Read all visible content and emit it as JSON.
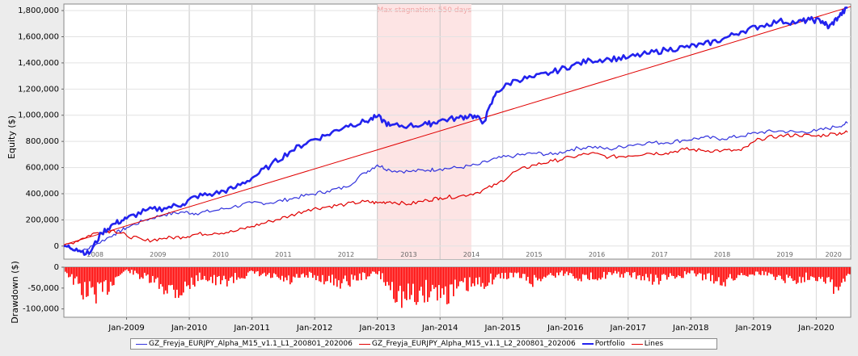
{
  "chart_data": [
    {
      "type": "line",
      "panel": "equity",
      "ylabel": "Equity ($)",
      "ylim": [
        -100000,
        1850000
      ],
      "yticks": [
        0,
        200000,
        400000,
        600000,
        800000,
        1000000,
        1200000,
        1400000,
        1600000,
        1800000
      ],
      "ytick_labels": [
        "0",
        "200,000",
        "400,000",
        "600,000",
        "800,000",
        "1,000,000",
        "1,200,000",
        "1,400,000",
        "1,600,000",
        "1,800,000"
      ],
      "xlim": [
        2008.0,
        2020.55
      ],
      "year_labels": [
        "2008",
        "2009",
        "2010",
        "2011",
        "2012",
        "2013",
        "2014",
        "2015",
        "2016",
        "2017",
        "2018",
        "2019",
        "2020"
      ],
      "highlight": {
        "label": "Max stagnation: 550 days",
        "x": [
          2013.0,
          2014.5
        ],
        "color": "#fde4e4"
      },
      "series": [
        {
          "name": "GZ_Freyja_EURJPY_Alpha_M15_v1.1_L1_200801_202006",
          "color": "#3333dd",
          "width": 1.2,
          "x": [
            2008.0,
            2008.3,
            2008.5,
            2008.8,
            2009.0,
            2009.3,
            2009.6,
            2009.9,
            2010.1,
            2010.4,
            2010.7,
            2011.0,
            2011.3,
            2011.6,
            2011.9,
            2012.2,
            2012.5,
            2012.8,
            2013.0,
            2013.2,
            2013.5,
            2013.8,
            2014.0,
            2014.3,
            2014.6,
            2014.9,
            2015.2,
            2015.5,
            2015.8,
            2016.1,
            2016.4,
            2016.7,
            2017.0,
            2017.3,
            2017.6,
            2017.9,
            2018.2,
            2018.5,
            2018.8,
            2019.1,
            2019.4,
            2019.7,
            2020.0,
            2020.3,
            2020.5
          ],
          "y": [
            0,
            -40000,
            10000,
            90000,
            140000,
            200000,
            240000,
            260000,
            250000,
            270000,
            300000,
            330000,
            330000,
            360000,
            390000,
            420000,
            450000,
            560000,
            620000,
            580000,
            570000,
            580000,
            590000,
            600000,
            620000,
            670000,
            690000,
            710000,
            700000,
            740000,
            760000,
            740000,
            770000,
            790000,
            790000,
            810000,
            830000,
            820000,
            840000,
            870000,
            880000,
            870000,
            880000,
            910000,
            940000
          ]
        },
        {
          "name": "GZ_Freyja_EURJPY_Alpha_M15_v1.1_L2_200801_202006",
          "color": "#e00000",
          "width": 1.2,
          "x": [
            2008.0,
            2008.3,
            2008.5,
            2008.8,
            2009.0,
            2009.3,
            2009.6,
            2009.9,
            2010.1,
            2010.4,
            2010.7,
            2011.0,
            2011.3,
            2011.6,
            2011.9,
            2012.2,
            2012.5,
            2012.8,
            2013.0,
            2013.2,
            2013.5,
            2013.8,
            2014.0,
            2014.3,
            2014.6,
            2014.9,
            2015.2,
            2015.5,
            2015.8,
            2016.1,
            2016.4,
            2016.7,
            2017.0,
            2017.3,
            2017.6,
            2017.9,
            2018.2,
            2018.5,
            2018.8,
            2019.1,
            2019.4,
            2019.7,
            2020.0,
            2020.3,
            2020.5
          ],
          "y": [
            0,
            60000,
            100000,
            120000,
            80000,
            40000,
            60000,
            70000,
            90000,
            100000,
            110000,
            150000,
            190000,
            230000,
            280000,
            300000,
            320000,
            340000,
            330000,
            340000,
            320000,
            350000,
            370000,
            380000,
            410000,
            470000,
            570000,
            620000,
            650000,
            680000,
            710000,
            680000,
            690000,
            710000,
            710000,
            740000,
            730000,
            730000,
            730000,
            820000,
            840000,
            850000,
            840000,
            860000,
            870000
          ]
        },
        {
          "name": "Portfolio",
          "color": "#2222ee",
          "width": 2.6,
          "x": [
            2008.0,
            2008.2,
            2008.4,
            2008.6,
            2008.8,
            2009.0,
            2009.3,
            2009.6,
            2009.9,
            2010.1,
            2010.4,
            2010.7,
            2011.0,
            2011.3,
            2011.6,
            2011.9,
            2012.2,
            2012.5,
            2012.8,
            2013.0,
            2013.2,
            2013.5,
            2013.8,
            2014.0,
            2014.3,
            2014.5,
            2014.7,
            2014.9,
            2015.2,
            2015.5,
            2015.8,
            2016.1,
            2016.4,
            2016.7,
            2017.0,
            2017.3,
            2017.6,
            2017.9,
            2018.2,
            2018.5,
            2018.8,
            2019.1,
            2019.4,
            2019.7,
            2019.9,
            2020.1,
            2020.2,
            2020.35,
            2020.5
          ],
          "y": [
            0,
            -20000,
            -60000,
            100000,
            170000,
            210000,
            270000,
            290000,
            320000,
            380000,
            400000,
            440000,
            520000,
            620000,
            720000,
            800000,
            850000,
            920000,
            950000,
            990000,
            920000,
            920000,
            930000,
            960000,
            980000,
            1000000,
            950000,
            1180000,
            1270000,
            1290000,
            1330000,
            1380000,
            1420000,
            1430000,
            1440000,
            1470000,
            1500000,
            1520000,
            1540000,
            1580000,
            1640000,
            1680000,
            1720000,
            1710000,
            1730000,
            1720000,
            1670000,
            1750000,
            1820000
          ]
        },
        {
          "name": "Lines",
          "color": "#e00000",
          "width": 1.0,
          "x": [
            2008.0,
            2020.55
          ],
          "y": [
            10000,
            1830000
          ]
        }
      ]
    },
    {
      "type": "bar",
      "panel": "drawdown",
      "ylabel": "Drawdown ($)",
      "ylim": [
        -120000,
        0
      ],
      "yticks": [
        0,
        -50000,
        -100000
      ],
      "ytick_labels": [
        "0",
        "-50,000",
        "-100,000"
      ],
      "xlim": [
        2008.0,
        2020.55
      ],
      "xtick_labels": [
        "Jan-2009",
        "Jan-2010",
        "Jan-2011",
        "Jan-2012",
        "Jan-2013",
        "Jan-2014",
        "Jan-2015",
        "Jan-2016",
        "Jan-2017",
        "Jan-2018",
        "Jan-2019",
        "Jan-2020"
      ],
      "color": "#ff0000",
      "x": [
        2008.0,
        2008.3,
        2008.6,
        2008.85,
        2009.0,
        2009.3,
        2009.6,
        2009.85,
        2010.0,
        2010.2,
        2010.45,
        2010.7,
        2011.0,
        2011.3,
        2011.6,
        2011.9,
        2012.2,
        2012.45,
        2012.7,
        2013.0,
        2013.15,
        2013.4,
        2013.6,
        2013.85,
        2014.1,
        2014.35,
        2014.6,
        2014.9,
        2015.2,
        2015.45,
        2015.7,
        2016.0,
        2016.3,
        2016.55,
        2016.8,
        2017.1,
        2017.4,
        2017.7,
        2018.0,
        2018.3,
        2018.55,
        2018.8,
        2019.1,
        2019.4,
        2019.65,
        2019.9,
        2020.15,
        2020.35,
        2020.5
      ],
      "y": [
        -10000,
        -85000,
        -90000,
        -30000,
        -10000,
        -40000,
        -70000,
        -85000,
        -60000,
        -30000,
        -55000,
        -40000,
        -20000,
        -35000,
        -50000,
        -30000,
        -45000,
        -55000,
        -35000,
        -20000,
        -60000,
        -110000,
        -100000,
        -80000,
        -90000,
        -70000,
        -60000,
        -35000,
        -25000,
        -50000,
        -30000,
        -20000,
        -40000,
        -30000,
        -25000,
        -30000,
        -45000,
        -35000,
        -20000,
        -40000,
        -50000,
        -25000,
        -20000,
        -35000,
        -45000,
        -30000,
        -40000,
        -85000,
        -20000
      ]
    }
  ]
}
